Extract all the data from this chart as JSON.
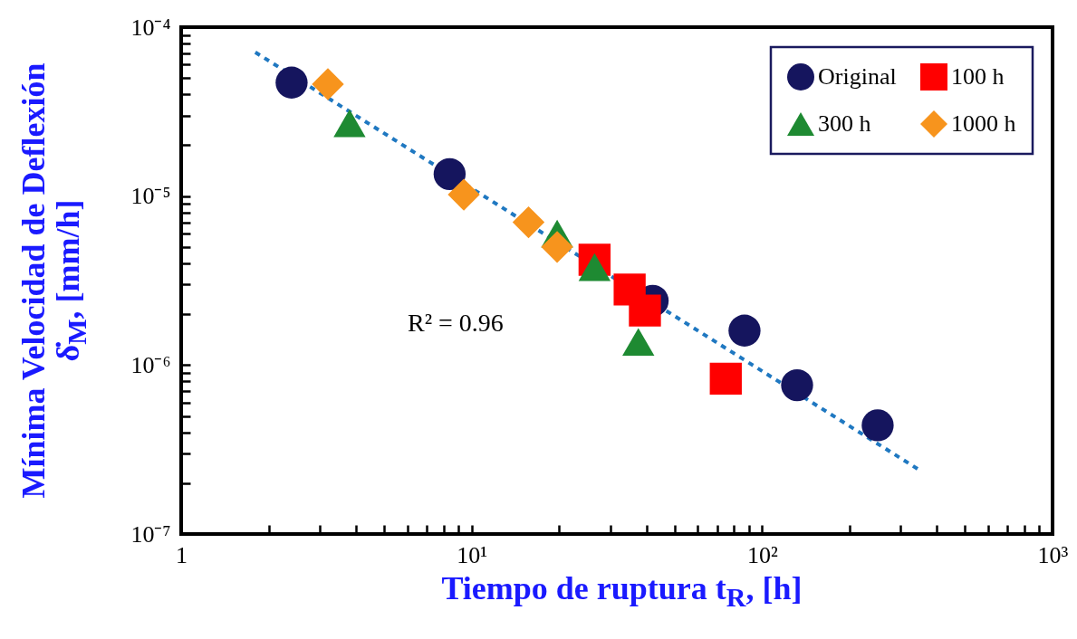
{
  "chart_data": {
    "type": "scatter",
    "xlabel": "Tiempo de ruptura t$_{R}$, [h]",
    "ylabel": "Mínima Velocidad de Deflexión\nδ̇$_{M}$, [mm/h]",
    "log": "xy",
    "grid": false,
    "legend": "top right",
    "xlim": [
      1,
      1000
    ],
    "ylim": [
      1e-07,
      0.0001
    ],
    "xticks": [
      {
        "value": 1,
        "label": "1"
      },
      {
        "value": 2,
        "label": null
      },
      {
        "value": 3,
        "label": null
      },
      {
        "value": 4,
        "label": null
      },
      {
        "value": 5,
        "label": null
      },
      {
        "value": 6,
        "label": null
      },
      {
        "value": 7,
        "label": null
      },
      {
        "value": 8,
        "label": null
      },
      {
        "value": 9,
        "label": null
      },
      {
        "value": 10,
        "label": "10¹"
      },
      {
        "value": 20,
        "label": null
      },
      {
        "value": 30,
        "label": null
      },
      {
        "value": 40,
        "label": null
      },
      {
        "value": 50,
        "label": null
      },
      {
        "value": 60,
        "label": null
      },
      {
        "value": 70,
        "label": null
      },
      {
        "value": 80,
        "label": null
      },
      {
        "value": 90,
        "label": null
      },
      {
        "value": 100,
        "label": "10²"
      },
      {
        "value": 200,
        "label": null
      },
      {
        "value": 300,
        "label": null
      },
      {
        "value": 400,
        "label": null
      },
      {
        "value": 500,
        "label": null
      },
      {
        "value": 600,
        "label": null
      },
      {
        "value": 700,
        "label": null
      },
      {
        "value": 800,
        "label": null
      },
      {
        "value": 900,
        "label": null
      },
      {
        "value": 1000,
        "label": "10³"
      }
    ],
    "yticks": [
      {
        "value": 1e-07,
        "label": "10⁻⁷"
      },
      {
        "value": 2e-07,
        "label": null
      },
      {
        "value": 3e-07,
        "label": null
      },
      {
        "value": 4e-07,
        "label": null
      },
      {
        "value": 5e-07,
        "label": null
      },
      {
        "value": 6e-07,
        "label": null
      },
      {
        "value": 7e-07,
        "label": null
      },
      {
        "value": 8e-07,
        "label": null
      },
      {
        "value": 9e-07,
        "label": null
      },
      {
        "value": 1e-06,
        "label": "10⁻⁶"
      },
      {
        "value": 2e-06,
        "label": null
      },
      {
        "value": 3e-06,
        "label": null
      },
      {
        "value": 4e-06,
        "label": null
      },
      {
        "value": 5e-06,
        "label": null
      },
      {
        "value": 6e-06,
        "label": null
      },
      {
        "value": 7e-06,
        "label": null
      },
      {
        "value": 8e-06,
        "label": null
      },
      {
        "value": 9e-06,
        "label": null
      },
      {
        "value": 1e-05,
        "label": "10⁻⁵"
      },
      {
        "value": 2e-05,
        "label": null
      },
      {
        "value": 3e-05,
        "label": null
      },
      {
        "value": 4e-05,
        "label": null
      },
      {
        "value": 5e-05,
        "label": null
      },
      {
        "value": 6e-05,
        "label": null
      },
      {
        "value": 7e-05,
        "label": null
      },
      {
        "value": 8e-05,
        "label": null
      },
      {
        "value": 9e-05,
        "label": null
      },
      {
        "value": 0.0001,
        "label": "10⁻⁴"
      }
    ],
    "annotations": [
      "R² = 0.96"
    ],
    "series": [
      {
        "name": "Original",
        "color": "#15155e",
        "marker": "circle",
        "x": [
          2.4,
          8.4,
          42,
          87,
          132,
          250
        ],
        "values": [
          4.7e-05,
          1.35e-05,
          2.4e-06,
          1.6e-06,
          7.6e-07,
          4.4e-07
        ]
      },
      {
        "name": "100 h",
        "color": "#ff0000",
        "marker": "square",
        "x": [
          26.5,
          35,
          39.5,
          75
        ],
        "values": [
          4.2e-06,
          2.8e-06,
          2.1e-06,
          8.3e-07
        ]
      },
      {
        "name": "300 h",
        "color": "#1e8a32",
        "marker": "triangle",
        "x": [
          3.8,
          19.7,
          26.5,
          37.5
        ],
        "values": [
          2.7e-05,
          6e-06,
          3.8e-06,
          1.37e-06
        ]
      },
      {
        "name": "1000 h",
        "color": "#f7941d",
        "marker": "diamond",
        "x": [
          3.2,
          9.4,
          15.7,
          19.7
        ],
        "values": [
          4.6e-05,
          1.02e-05,
          7e-06,
          5e-06
        ]
      },
      {
        "type": "line",
        "color": "#1f78c1",
        "line_style": "dashed",
        "marker": "none",
        "x": [
          1.8,
          343
        ],
        "values": [
          7.1e-05,
          2.43e-07
        ]
      }
    ]
  }
}
